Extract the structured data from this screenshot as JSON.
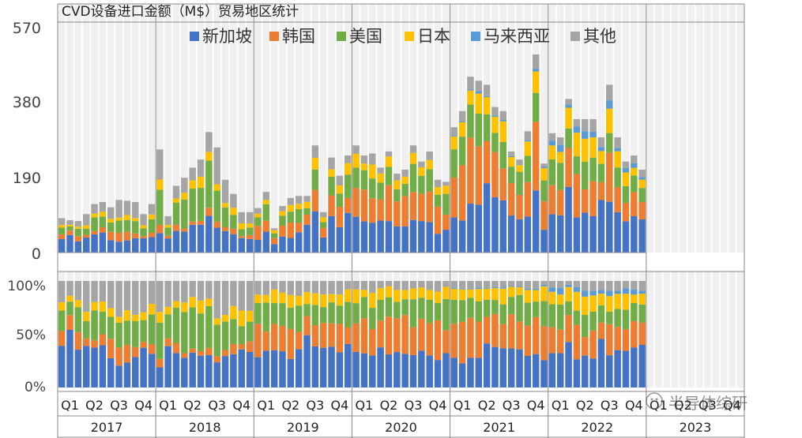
{
  "chart_data": {
    "type": "bar",
    "title": "CVD设备进口金额（M$）贸易地区统计",
    "stacked": true,
    "legend_position": "top",
    "grid": false,
    "colors": [
      "#4472C4",
      "#ED7D31",
      "#70AD47",
      "#FFC000",
      "#5B9BD5",
      "#A5A5A5"
    ],
    "series_names": [
      "新加坡",
      "韩国",
      "美国",
      "日本",
      "马来西亚",
      "其他"
    ],
    "top_panel": {
      "ylim": [
        0,
        570
      ],
      "yticks": [
        "0",
        "190",
        "380",
        "570"
      ]
    },
    "bottom_panel": {
      "ylim": [
        0,
        100
      ],
      "yticks": [
        "0%",
        "50%",
        "100%"
      ]
    },
    "quarters": [
      "Q1",
      "Q2",
      "Q3",
      "Q4"
    ],
    "years": [
      "2017",
      "2018",
      "2019",
      "2020",
      "2021",
      "2022",
      "2023"
    ],
    "watermark": "半导体综研",
    "monthly_totals": [
      85,
      80,
      78,
      95,
      120,
      125,
      112,
      130,
      128,
      125,
      95,
      120,
      255,
      90,
      165,
      185,
      210,
      230,
      298,
      260,
      180,
      145,
      100,
      100,
      110,
      150,
      60,
      115,
      135,
      140,
      140,
      265,
      100,
      235,
      190,
      240,
      265,
      240,
      245,
      210,
      250,
      195,
      205,
      265,
      225,
      250,
      180,
      175,
      310,
      350,
      435,
      425,
      415,
      360,
      350,
      250,
      230,
      300,
      490,
      220,
      295,
      285,
      380,
      330,
      330,
      330,
      285,
      415,
      285,
      225,
      240,
      205
    ],
    "monthly_share": [
      [
        42,
        12,
        20,
        6,
        0,
        20
      ],
      [
        40,
        8,
        20,
        7,
        0,
        25
      ],
      [
        28,
        17,
        22,
        8,
        0,
        25
      ],
      [
        30,
        10,
        25,
        10,
        0,
        25
      ],
      [
        28,
        8,
        30,
        10,
        0,
        24
      ],
      [
        30,
        5,
        35,
        12,
        0,
        18
      ],
      [
        28,
        5,
        30,
        10,
        0,
        27
      ],
      [
        32,
        8,
        25,
        12,
        0,
        23
      ],
      [
        48,
        5,
        18,
        8,
        0,
        21
      ],
      [
        38,
        5,
        25,
        8,
        0,
        24
      ],
      [
        30,
        3,
        18,
        12,
        0,
        37
      ],
      [
        40,
        5,
        20,
        10,
        0,
        25
      ],
      [
        10,
        5,
        60,
        10,
        0,
        15
      ],
      [
        10,
        5,
        50,
        10,
        0,
        25
      ],
      [
        35,
        5,
        25,
        8,
        0,
        27
      ],
      [
        45,
        5,
        20,
        8,
        0,
        22
      ],
      [
        15,
        5,
        40,
        15,
        0,
        25
      ],
      [
        30,
        5,
        45,
        15,
        0,
        5
      ],
      [
        28,
        5,
        45,
        15,
        0,
        7
      ],
      [
        30,
        5,
        40,
        12,
        0,
        13
      ],
      [
        32,
        6,
        40,
        15,
        0,
        7
      ],
      [
        30,
        8,
        40,
        12,
        0,
        10
      ],
      [
        28,
        10,
        35,
        12,
        0,
        15
      ],
      [
        30,
        10,
        30,
        12,
        0,
        18
      ]
    ]
  }
}
